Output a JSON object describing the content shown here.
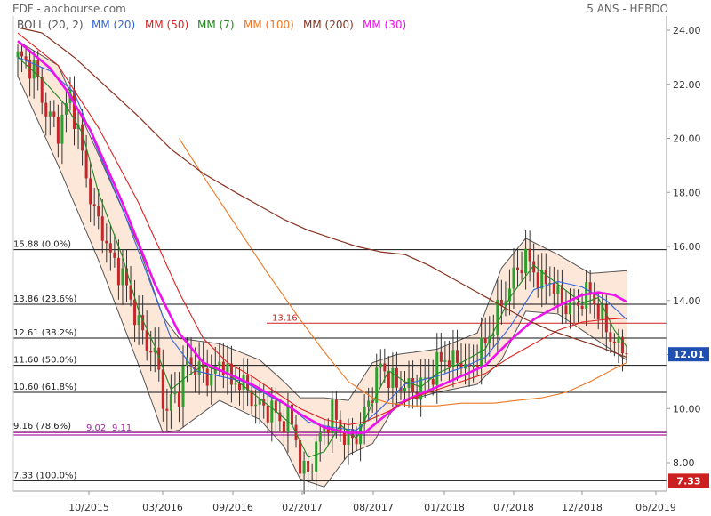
{
  "header": {
    "left": "EDF - abcbourse.com",
    "right": "5 ANS - HEBDO"
  },
  "legend": [
    {
      "label": "BOLL (20, 2)",
      "color": "#555555"
    },
    {
      "label": "MM (20)",
      "color": "#3366dd"
    },
    {
      "label": "MM (50)",
      "color": "#dd2222"
    },
    {
      "label": "MM (7)",
      "color": "#228822"
    },
    {
      "label": "MM (100)",
      "color": "#ee7722"
    },
    {
      "label": "MM (200)",
      "color": "#883322"
    },
    {
      "label": "MM (30)",
      "color": "#ee11ee"
    }
  ],
  "chart_data": {
    "type": "candlestick",
    "ylim": [
      7.0,
      24.5
    ],
    "y_ticks": [
      "24.00",
      "22.00",
      "20.00",
      "18.00",
      "16.00",
      "14.00",
      "12.00",
      "10.00",
      "8.00"
    ],
    "x_ticks": [
      "10/2015",
      "03/2016",
      "09/2016",
      "02/2017",
      "08/2017",
      "01/2018",
      "07/2018",
      "12/2018",
      "06/2019"
    ],
    "last_price": "12.01",
    "min_price": "7.33",
    "fibonacci_levels": [
      {
        "label": "15.88  (0.0%)",
        "value": 15.88
      },
      {
        "label": "13.86  (23.6%)",
        "value": 13.86
      },
      {
        "label": "12.61  (38.2%)",
        "value": 12.61
      },
      {
        "label": "11.60  (50.0%)",
        "value": 11.6
      },
      {
        "label": "10.60  (61.8%)",
        "value": 10.6
      },
      {
        "label": "9.16  (78.6%)",
        "value": 9.16
      },
      {
        "label": "7.33  (100.0%)",
        "value": 7.33
      }
    ],
    "horizontal_markers": [
      {
        "label": "13.16",
        "value": 13.16,
        "color": "#cc2222"
      },
      {
        "label": "9.02",
        "value": 9.02,
        "color": "#aa22aa"
      },
      {
        "label": "9.11",
        "value": 9.11,
        "color": "#aa22aa"
      }
    ],
    "close_anchors": [
      [
        0,
        23.0
      ],
      [
        4,
        22.6
      ],
      [
        7,
        21.0
      ],
      [
        10,
        20.3
      ],
      [
        13,
        21.6
      ],
      [
        15,
        20.2
      ],
      [
        17,
        18.6
      ],
      [
        19,
        17.2
      ],
      [
        21,
        16.6
      ],
      [
        23,
        15.6
      ],
      [
        26,
        14.9
      ],
      [
        28,
        14.0
      ],
      [
        30,
        13.1
      ],
      [
        32,
        12.4
      ],
      [
        34,
        12.0
      ],
      [
        36,
        10.5
      ],
      [
        37,
        9.7
      ],
      [
        38,
        10.4
      ],
      [
        40,
        10.6
      ],
      [
        42,
        11.8
      ],
      [
        45,
        11.4
      ],
      [
        48,
        11.2
      ],
      [
        51,
        11.8
      ],
      [
        53,
        10.8
      ],
      [
        55,
        11.1
      ],
      [
        57,
        10.6
      ],
      [
        59,
        10.2
      ],
      [
        61,
        10.0
      ],
      [
        63,
        10.0
      ],
      [
        65,
        9.5
      ],
      [
        67,
        9.7
      ],
      [
        69,
        9.0
      ],
      [
        70,
        7.8
      ],
      [
        72,
        7.6
      ],
      [
        74,
        8.6
      ],
      [
        76,
        9.3
      ],
      [
        78,
        9.9
      ],
      [
        80,
        9.2
      ],
      [
        82,
        8.8
      ],
      [
        84,
        9.0
      ],
      [
        86,
        9.8
      ],
      [
        88,
        10.7
      ],
      [
        90,
        11.6
      ],
      [
        92,
        11.2
      ],
      [
        94,
        10.8
      ],
      [
        96,
        10.9
      ],
      [
        98,
        10.6
      ],
      [
        100,
        10.9
      ],
      [
        102,
        11.1
      ],
      [
        104,
        11.6
      ],
      [
        106,
        11.9
      ],
      [
        108,
        11.7
      ],
      [
        110,
        11.8
      ],
      [
        112,
        11.3
      ],
      [
        114,
        12.0
      ],
      [
        116,
        12.4
      ],
      [
        118,
        13.1
      ],
      [
        120,
        13.9
      ],
      [
        122,
        14.5
      ],
      [
        124,
        15.2
      ],
      [
        126,
        15.6
      ],
      [
        128,
        15.1
      ],
      [
        130,
        14.6
      ],
      [
        132,
        14.8
      ],
      [
        134,
        14.1
      ],
      [
        136,
        13.8
      ],
      [
        138,
        13.7
      ],
      [
        140,
        14.1
      ],
      [
        142,
        14.3
      ],
      [
        144,
        13.6
      ],
      [
        146,
        13.0
      ],
      [
        148,
        12.4
      ],
      [
        150,
        12.2
      ],
      [
        151,
        12.01
      ]
    ],
    "series": [
      {
        "name": "BOLL (20, 2)",
        "anchors": [
          [
            0,
            23.6,
            22.3
          ],
          [
            10,
            22.7,
            19.0
          ],
          [
            20,
            19.4,
            15.5
          ],
          [
            30,
            16.0,
            11.6
          ],
          [
            36,
            13.4,
            9.1
          ],
          [
            40,
            12.6,
            9.2
          ],
          [
            50,
            12.4,
            10.3
          ],
          [
            60,
            11.8,
            9.6
          ],
          [
            66,
            11.0,
            8.6
          ],
          [
            70,
            10.4,
            7.4
          ],
          [
            76,
            10.4,
            7.1
          ],
          [
            82,
            10.3,
            8.3
          ],
          [
            88,
            11.7,
            8.7
          ],
          [
            94,
            12.0,
            10.2
          ],
          [
            104,
            12.2,
            10.6
          ],
          [
            114,
            12.8,
            10.9
          ],
          [
            120,
            15.2,
            11.8
          ],
          [
            126,
            16.3,
            13.6
          ],
          [
            134,
            15.7,
            13.5
          ],
          [
            142,
            15.0,
            12.7
          ],
          [
            151,
            15.1,
            11.8
          ]
        ]
      },
      {
        "name": "MM (20)",
        "anchors": [
          [
            0,
            23.0
          ],
          [
            8,
            22.5
          ],
          [
            14,
            21.7
          ],
          [
            20,
            19.5
          ],
          [
            26,
            17.4
          ],
          [
            32,
            15.0
          ],
          [
            38,
            12.6
          ],
          [
            44,
            11.4
          ],
          [
            50,
            11.2
          ],
          [
            56,
            11.0
          ],
          [
            62,
            10.5
          ],
          [
            68,
            10.0
          ],
          [
            72,
            9.5
          ],
          [
            78,
            9.3
          ],
          [
            84,
            9.2
          ],
          [
            90,
            10.0
          ],
          [
            96,
            10.9
          ],
          [
            104,
            11.2
          ],
          [
            110,
            11.5
          ],
          [
            116,
            11.9
          ],
          [
            122,
            13.0
          ],
          [
            128,
            14.4
          ],
          [
            134,
            14.7
          ],
          [
            140,
            14.5
          ],
          [
            146,
            14.0
          ],
          [
            151,
            13.3
          ]
        ]
      },
      {
        "name": "MM (7)",
        "anchors": [
          [
            0,
            23.0
          ],
          [
            6,
            22.2
          ],
          [
            12,
            21.2
          ],
          [
            16,
            20.2
          ],
          [
            20,
            18.0
          ],
          [
            26,
            15.6
          ],
          [
            30,
            13.6
          ],
          [
            34,
            12.3
          ],
          [
            38,
            10.7
          ],
          [
            42,
            11.2
          ],
          [
            46,
            11.6
          ],
          [
            52,
            11.3
          ],
          [
            58,
            10.6
          ],
          [
            64,
            9.9
          ],
          [
            68,
            9.4
          ],
          [
            72,
            8.2
          ],
          [
            76,
            8.4
          ],
          [
            80,
            9.4
          ],
          [
            84,
            8.9
          ],
          [
            88,
            10.2
          ],
          [
            92,
            11.4
          ],
          [
            96,
            11.0
          ],
          [
            100,
            10.8
          ],
          [
            104,
            11.3
          ],
          [
            110,
            11.7
          ],
          [
            116,
            12.2
          ],
          [
            122,
            14.1
          ],
          [
            128,
            15.3
          ],
          [
            134,
            14.6
          ],
          [
            140,
            13.9
          ],
          [
            144,
            14.1
          ],
          [
            148,
            12.9
          ],
          [
            151,
            12.3
          ]
        ]
      },
      {
        "name": "MM (30)",
        "anchors": [
          [
            0,
            23.6
          ],
          [
            8,
            22.6
          ],
          [
            12,
            21.8
          ],
          [
            18,
            20.3
          ],
          [
            26,
            17.6
          ],
          [
            34,
            14.6
          ],
          [
            40,
            12.8
          ],
          [
            46,
            11.7
          ],
          [
            52,
            11.3
          ],
          [
            58,
            10.9
          ],
          [
            64,
            10.4
          ],
          [
            70,
            9.8
          ],
          [
            76,
            9.3
          ],
          [
            82,
            9.1
          ],
          [
            86,
            9.1
          ],
          [
            90,
            9.6
          ],
          [
            96,
            10.3
          ],
          [
            104,
            10.8
          ],
          [
            110,
            11.2
          ],
          [
            116,
            11.6
          ],
          [
            122,
            12.5
          ],
          [
            128,
            13.3
          ],
          [
            134,
            13.8
          ],
          [
            140,
            14.2
          ],
          [
            144,
            14.3
          ],
          [
            148,
            14.2
          ],
          [
            151,
            13.95
          ]
        ]
      },
      {
        "name": "MM (50)",
        "anchors": [
          [
            0,
            23.9
          ],
          [
            10,
            22.7
          ],
          [
            20,
            20.4
          ],
          [
            30,
            17.6
          ],
          [
            40,
            14.3
          ],
          [
            46,
            12.6
          ],
          [
            52,
            11.7
          ],
          [
            58,
            11.2
          ],
          [
            64,
            10.6
          ],
          [
            70,
            10.0
          ],
          [
            76,
            9.6
          ],
          [
            82,
            9.4
          ],
          [
            86,
            9.5
          ],
          [
            92,
            9.9
          ],
          [
            98,
            10.4
          ],
          [
            104,
            10.7
          ],
          [
            110,
            11.0
          ],
          [
            116,
            11.3
          ],
          [
            122,
            11.9
          ],
          [
            128,
            12.4
          ],
          [
            134,
            12.9
          ],
          [
            140,
            13.2
          ],
          [
            146,
            13.3
          ],
          [
            151,
            13.35
          ]
        ]
      },
      {
        "name": "MM (100)",
        "anchors": [
          [
            40,
            20.0
          ],
          [
            46,
            18.6
          ],
          [
            54,
            16.8
          ],
          [
            62,
            15.0
          ],
          [
            70,
            13.3
          ],
          [
            76,
            12.1
          ],
          [
            82,
            11.0
          ],
          [
            88,
            10.4
          ],
          [
            92,
            10.2
          ],
          [
            98,
            10.1
          ],
          [
            104,
            10.1
          ],
          [
            110,
            10.2
          ],
          [
            118,
            10.2
          ],
          [
            124,
            10.3
          ],
          [
            130,
            10.4
          ],
          [
            136,
            10.6
          ],
          [
            142,
            11.0
          ],
          [
            147,
            11.4
          ],
          [
            151,
            11.7
          ]
        ]
      },
      {
        "name": "MM (200)",
        "anchors": [
          [
            0,
            24.1
          ],
          [
            6,
            23.9
          ],
          [
            14,
            23.0
          ],
          [
            22,
            21.9
          ],
          [
            30,
            20.8
          ],
          [
            38,
            19.6
          ],
          [
            46,
            18.7
          ],
          [
            54,
            18.0
          ],
          [
            60,
            17.5
          ],
          [
            66,
            17.0
          ],
          [
            72,
            16.6
          ],
          [
            78,
            16.3
          ],
          [
            84,
            16.0
          ],
          [
            90,
            15.8
          ],
          [
            96,
            15.7
          ],
          [
            102,
            15.3
          ],
          [
            108,
            14.8
          ],
          [
            114,
            14.3
          ],
          [
            120,
            13.8
          ],
          [
            126,
            13.3
          ],
          [
            132,
            12.9
          ],
          [
            138,
            12.6
          ],
          [
            144,
            12.3
          ],
          [
            151,
            11.9
          ]
        ]
      }
    ]
  }
}
